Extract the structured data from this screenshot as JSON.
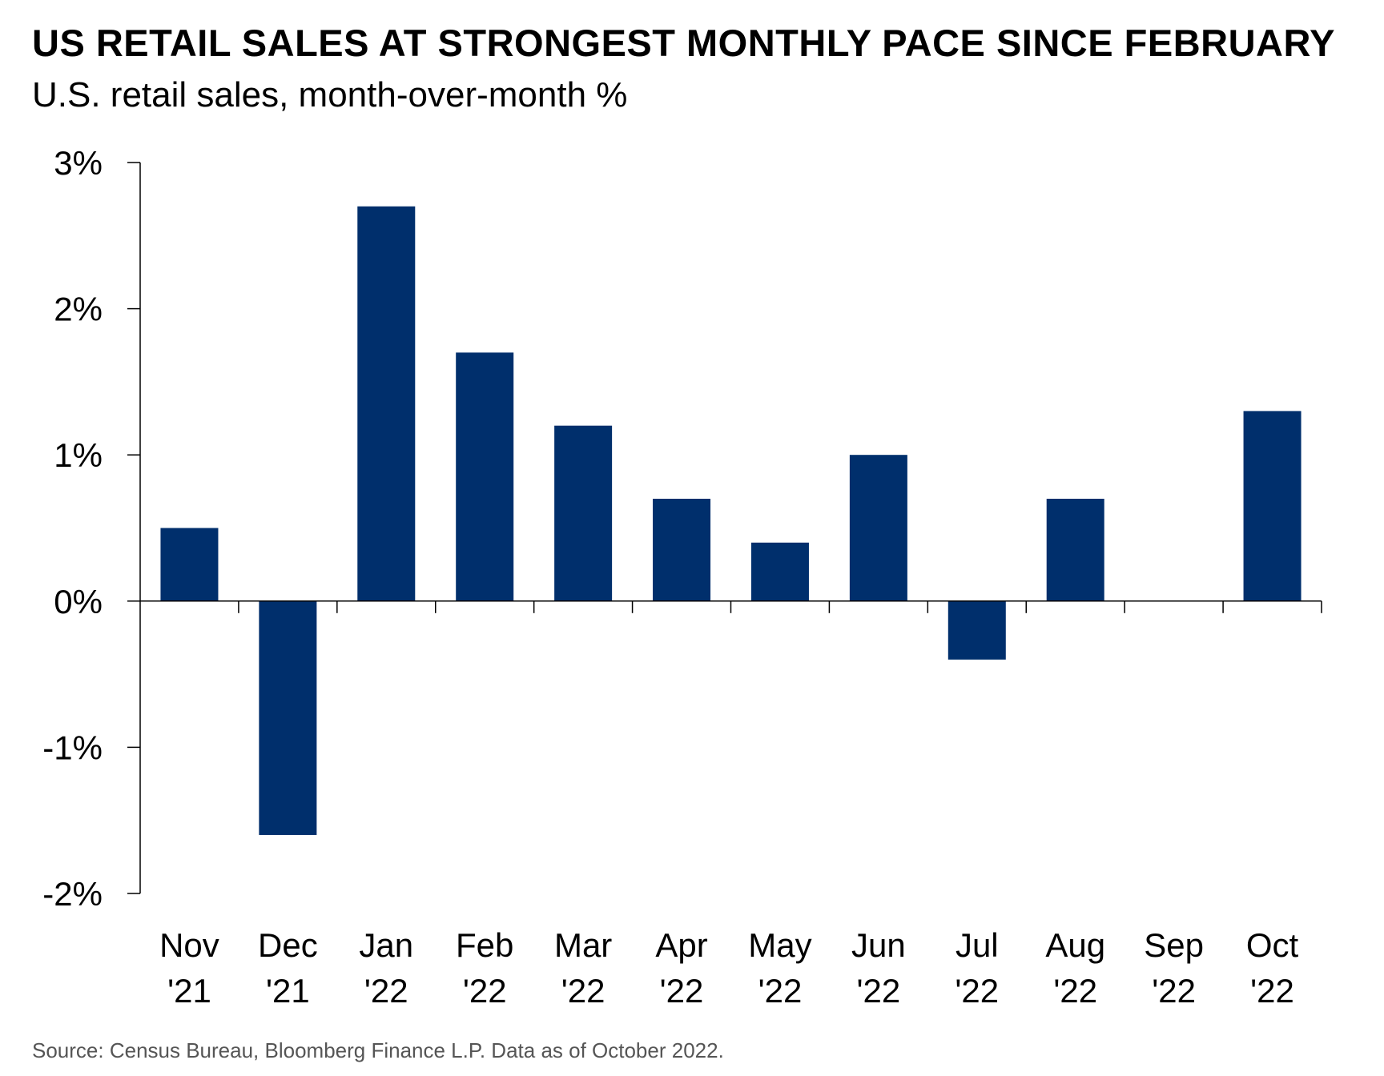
{
  "title": "US RETAIL SALES AT STRONGEST MONTHLY PACE SINCE FEBRUARY",
  "subtitle": "U.S. retail sales, month-over-month %",
  "source": "Source: Census Bureau, Bloomberg Finance L.P. Data as of October 2022.",
  "colors": {
    "bar": "#002f6c",
    "axis": "#000000"
  },
  "chart_data": {
    "type": "bar",
    "categories": [
      [
        "Nov",
        "'21"
      ],
      [
        "Dec",
        "'21"
      ],
      [
        "Jan",
        "'22"
      ],
      [
        "Feb",
        "'22"
      ],
      [
        "Mar",
        "'22"
      ],
      [
        "Apr",
        "'22"
      ],
      [
        "May",
        "'22"
      ],
      [
        "Jun",
        "'22"
      ],
      [
        "Jul",
        "'22"
      ],
      [
        "Aug",
        "'22"
      ],
      [
        "Sep",
        "'22"
      ],
      [
        "Oct",
        "'22"
      ]
    ],
    "values": [
      0.5,
      -1.6,
      2.7,
      1.7,
      1.2,
      0.7,
      0.4,
      1.0,
      -0.4,
      0.7,
      0.0,
      1.3
    ],
    "ylim": [
      -2,
      3
    ],
    "yticks": [
      3,
      2,
      1,
      0,
      -1,
      -2
    ],
    "ytick_labels": [
      "3%",
      "2%",
      "1%",
      "0%",
      "-1%",
      "-2%"
    ],
    "xlabel": "",
    "ylabel": "",
    "grid": false,
    "legend": "none"
  }
}
